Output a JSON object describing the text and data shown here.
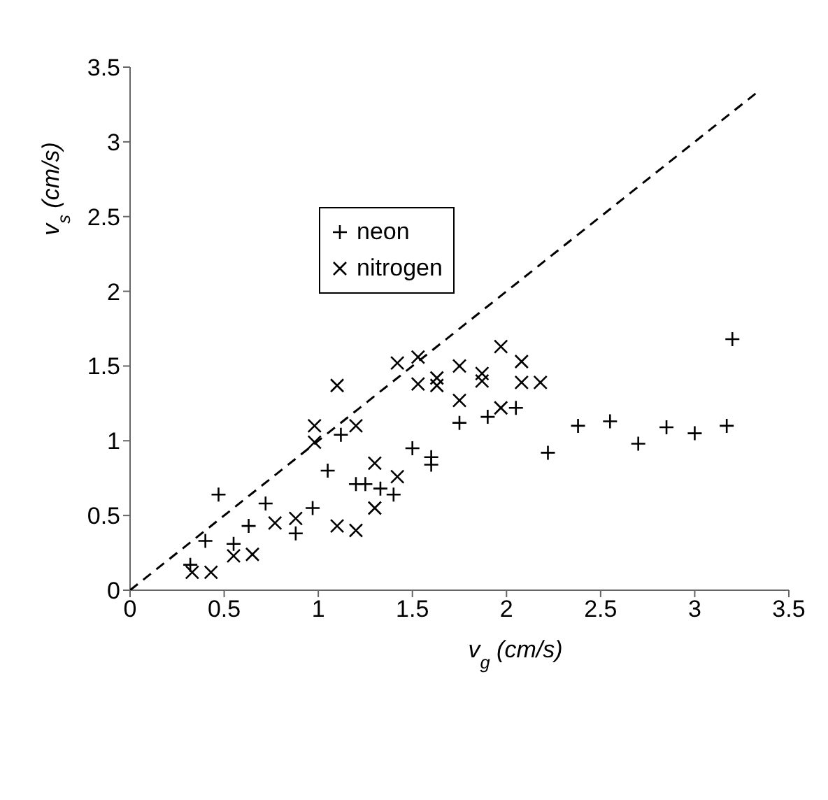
{
  "chart_data": {
    "type": "scatter",
    "xlabel": "v$_{g}$ (cm/s)",
    "ylabel": "v$_{s}$ (cm/s)",
    "xlim": [
      0,
      3.5
    ],
    "ylim": [
      0,
      3.5
    ],
    "xticks": [
      0,
      0.5,
      1,
      1.5,
      2,
      2.5,
      3,
      3.5
    ],
    "yticks": [
      0,
      0.5,
      1,
      1.5,
      2,
      2.5,
      3,
      3.5
    ],
    "legend": "top left",
    "series": [
      {
        "name": "neon",
        "color": "#000000",
        "marker": "plus",
        "x": [
          0.32,
          0.4,
          0.47,
          0.55,
          0.63,
          0.72,
          0.88,
          0.97,
          1.05,
          1.12,
          1.2,
          1.25,
          1.33,
          1.4,
          1.5,
          1.6,
          1.6,
          1.75,
          1.9,
          2.05,
          2.22,
          2.38,
          2.55,
          2.7,
          2.85,
          3.0,
          3.17,
          3.2
        ],
        "values": [
          0.17,
          0.33,
          0.64,
          0.31,
          0.43,
          0.58,
          0.38,
          0.55,
          0.8,
          1.04,
          0.71,
          0.71,
          0.68,
          0.64,
          0.95,
          0.89,
          0.84,
          1.12,
          1.16,
          1.22,
          0.92,
          1.1,
          1.13,
          0.98,
          1.09,
          1.05,
          1.1,
          1.68
        ]
      },
      {
        "name": "nitrogen",
        "color": "#000000",
        "marker": "cross",
        "x": [
          0.33,
          0.43,
          0.55,
          0.65,
          0.77,
          0.88,
          0.98,
          0.98,
          1.1,
          1.1,
          1.2,
          1.2,
          1.3,
          1.3,
          1.42,
          1.42,
          1.53,
          1.53,
          1.63,
          1.63,
          1.75,
          1.75,
          1.87,
          1.87,
          1.97,
          1.97,
          2.08,
          2.08,
          2.18
        ],
        "values": [
          0.12,
          0.12,
          0.23,
          0.24,
          0.45,
          0.48,
          1.1,
          0.99,
          1.37,
          0.43,
          1.1,
          0.4,
          0.85,
          0.55,
          1.52,
          0.76,
          1.56,
          1.38,
          1.42,
          1.37,
          1.5,
          1.27,
          1.45,
          1.4,
          1.63,
          1.22,
          1.53,
          1.39,
          1.39
        ]
      },
      {
        "type": "line",
        "color": "#000000",
        "line_style": "dashed",
        "marker": "none",
        "x": [
          0,
          3.33
        ],
        "values": [
          0,
          3.33
        ]
      }
    ]
  }
}
